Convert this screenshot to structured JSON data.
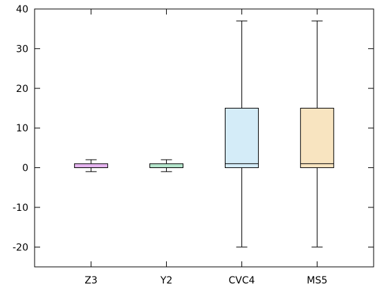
{
  "chart_data": {
    "type": "box",
    "categories": [
      "Z3",
      "Y2",
      "CVC4",
      "MS5"
    ],
    "boxes": [
      {
        "label": "Z3",
        "whisker_low": -1,
        "q1": 0,
        "median": 0,
        "q3": 1,
        "whisker_high": 2,
        "fill": "#e6b4f0"
      },
      {
        "label": "Y2",
        "whisker_low": -1,
        "q1": 0,
        "median": 0,
        "q3": 1,
        "whisker_high": 2,
        "fill": "#b4e6cc"
      },
      {
        "label": "CVC4",
        "whisker_low": -20,
        "q1": 0,
        "median": 1,
        "q3": 15,
        "whisker_high": 37,
        "fill": "#d4ecf8"
      },
      {
        "label": "MS5",
        "whisker_low": -20,
        "q1": 0,
        "median": 1,
        "q3": 15,
        "whisker_high": 37,
        "fill": "#f8e4c0"
      }
    ],
    "y_ticks": [
      -20,
      -10,
      0,
      10,
      20,
      30,
      40
    ],
    "ylim": [
      -25,
      40
    ],
    "xlim": [
      0.25,
      4.75
    ],
    "title": "",
    "xlabel": "",
    "ylabel": "",
    "grid": false
  }
}
